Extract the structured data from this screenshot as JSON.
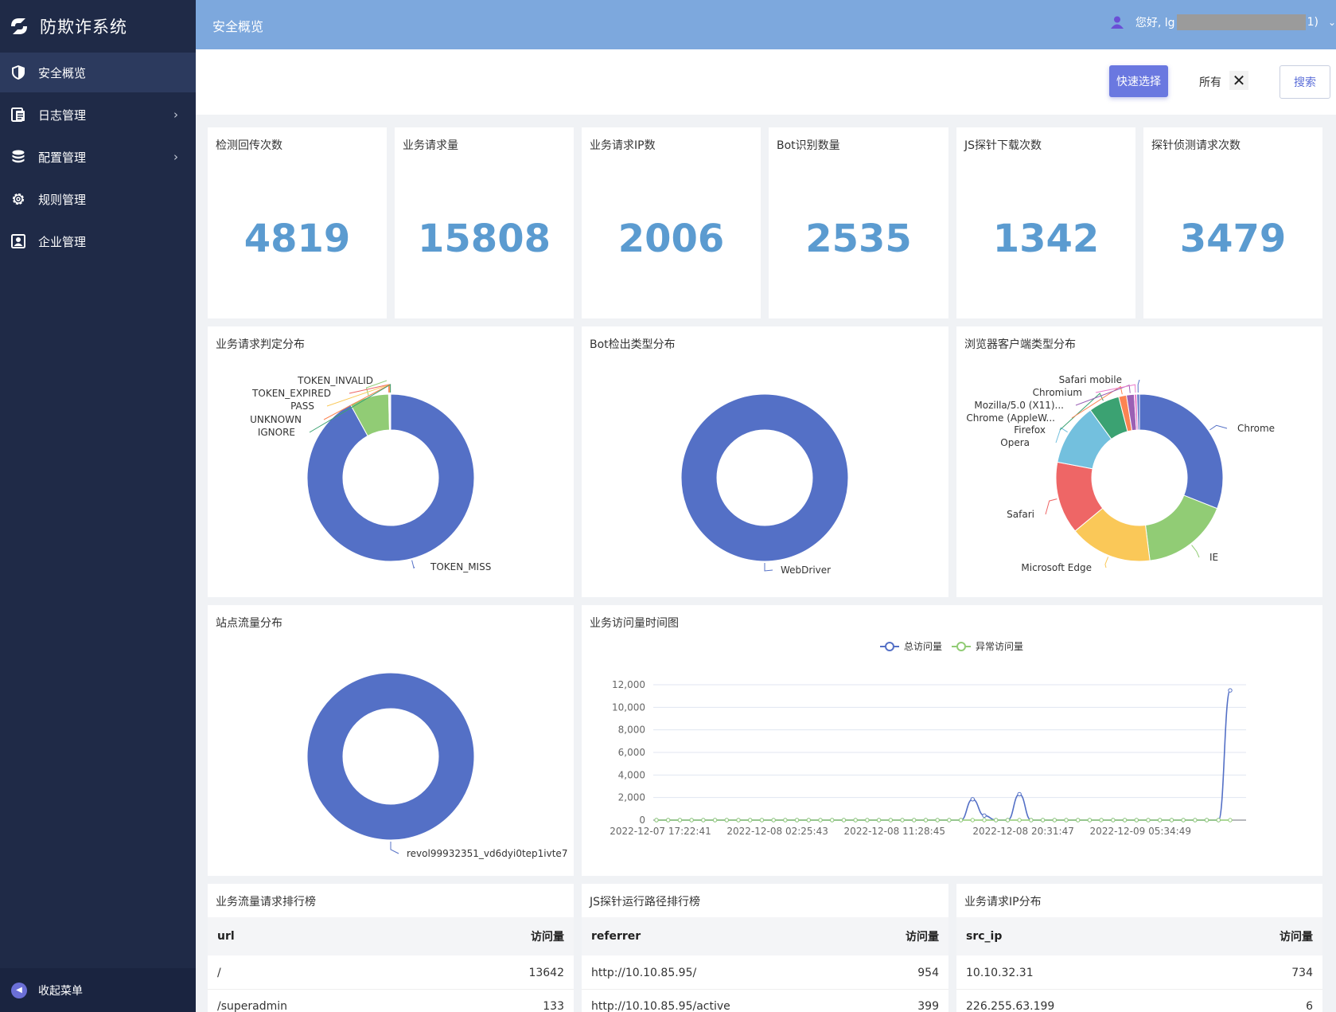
{
  "app": {
    "title": "防欺诈系统"
  },
  "sidebar": {
    "items": [
      {
        "label": "安全概览",
        "icon": "shield-icon",
        "active": true,
        "has_children": false
      },
      {
        "label": "日志管理",
        "icon": "log-icon",
        "active": false,
        "has_children": true
      },
      {
        "label": "配置管理",
        "icon": "database-icon",
        "active": false,
        "has_children": true
      },
      {
        "label": "规则管理",
        "icon": "gear-icon",
        "active": false,
        "has_children": false
      },
      {
        "label": "企业管理",
        "icon": "user-card-icon",
        "active": false,
        "has_children": false
      }
    ],
    "collapse_label": "收起菜单"
  },
  "header": {
    "title": "安全概览",
    "greeting_prefix": "您好, lg",
    "greeting_suffix": "1)"
  },
  "toolbar": {
    "quick_select": "快速选择",
    "filter_tag": "所有",
    "search": "搜索"
  },
  "stats": [
    {
      "label": "检测回传次数",
      "value": "4819"
    },
    {
      "label": "业务请求量",
      "value": "15808"
    },
    {
      "label": "业务请求IP数",
      "value": "2006"
    },
    {
      "label": "Bot识别数量",
      "value": "2535"
    },
    {
      "label": "JS探针下载次数",
      "value": "1342"
    },
    {
      "label": "探针侦测请求次数",
      "value": "3479"
    }
  ],
  "colors": {
    "accent": "#5470c6",
    "green": "#91cc75",
    "stat_value": "#5b9bd0",
    "header": "#7da8dd",
    "sidebar": "#1f2a47"
  },
  "chart_data": [
    {
      "type": "pie",
      "title": "业务请求判定分布",
      "slices": [
        {
          "name": "TOKEN_MISS",
          "value": 92,
          "color": "#5470c6"
        },
        {
          "name": "TOKEN_INVALID",
          "value": 7.6,
          "color": "#91cc75"
        },
        {
          "name": "TOKEN_EXPIRED",
          "value": 0.1,
          "color": "#ee6666"
        },
        {
          "name": "PASS",
          "value": 0.1,
          "color": "#fac858"
        },
        {
          "name": "UNKNOWN",
          "value": 0.1,
          "color": "#fc8452"
        },
        {
          "name": "IGNORE",
          "value": 0.1,
          "color": "#3ba272"
        }
      ]
    },
    {
      "type": "pie",
      "title": "Bot检出类型分布",
      "slices": [
        {
          "name": "WebDriver",
          "value": 100,
          "color": "#5470c6"
        }
      ]
    },
    {
      "type": "pie",
      "title": "浏览器客户端类型分布",
      "slices": [
        {
          "name": "Chrome",
          "value": 31,
          "color": "#5470c6"
        },
        {
          "name": "IE",
          "value": 17,
          "color": "#91cc75"
        },
        {
          "name": "Microsoft Edge",
          "value": 16,
          "color": "#fac858"
        },
        {
          "name": "Safari",
          "value": 14,
          "color": "#ee6666"
        },
        {
          "name": "Opera",
          "value": 12,
          "color": "#73c0de"
        },
        {
          "name": "Firefox",
          "value": 6,
          "color": "#3ba272"
        },
        {
          "name": "Chrome (AppleW...",
          "value": 1.5,
          "color": "#fc8452"
        },
        {
          "name": "Mozilla/5.0 (X11)...",
          "value": 1.5,
          "color": "#9a60b4"
        },
        {
          "name": "Chromium",
          "value": 0.5,
          "color": "#ea7ccc"
        },
        {
          "name": "Safari mobile",
          "value": 0.5,
          "color": "#5470c6"
        }
      ]
    },
    {
      "type": "pie",
      "title": "站点流量分布",
      "slices": [
        {
          "name": "revol99932351_vd6dyi0tep1ivte7",
          "value": 100,
          "color": "#5470c6"
        }
      ]
    },
    {
      "type": "line",
      "title": "业务访问量时间图",
      "ylim": [
        0,
        12000
      ],
      "yticks": [
        "0",
        "2,000",
        "4,000",
        "6,000",
        "8,000",
        "10,000",
        "12,000"
      ],
      "xticks": [
        "2022-12-07 17:22:41",
        "2022-12-08 02:25:43",
        "2022-12-08 11:28:45",
        "2022-12-08 20:31:47",
        "2022-12-09 05:34:49"
      ],
      "series": [
        {
          "name": "总访问量",
          "color": "#5470c6",
          "values": [
            0,
            0,
            0,
            0,
            0,
            0,
            0,
            0,
            0,
            0,
            0,
            0,
            0,
            0,
            0,
            0,
            0,
            0,
            0,
            0,
            0,
            0,
            0,
            0,
            0,
            0,
            0,
            1850,
            400,
            0,
            0,
            2300,
            0,
            0,
            0,
            0,
            0,
            0,
            0,
            0,
            0,
            0,
            0,
            0,
            0,
            0,
            0,
            0,
            0,
            11500
          ]
        },
        {
          "name": "异常访问量",
          "color": "#91cc75",
          "values": [
            0,
            0,
            0,
            0,
            0,
            0,
            0,
            0,
            0,
            0,
            0,
            0,
            0,
            0,
            0,
            0,
            0,
            0,
            0,
            0,
            0,
            0,
            0,
            0,
            0,
            0,
            0,
            0,
            0,
            0,
            0,
            0,
            0,
            0,
            0,
            0,
            0,
            0,
            0,
            0,
            0,
            0,
            0,
            0,
            0,
            0,
            0,
            0,
            0,
            0
          ]
        }
      ]
    }
  ],
  "tables": [
    {
      "title": "业务流量请求排行榜",
      "col1": "url",
      "col2": "访问量",
      "rows": [
        {
          "k": "/",
          "v": "13642"
        },
        {
          "k": "/superadmin",
          "v": "133"
        }
      ]
    },
    {
      "title": "JS探针运行路径排行榜",
      "col1": "referrer",
      "col2": "访问量",
      "rows": [
        {
          "k": "http://10.10.85.95/",
          "v": "954"
        },
        {
          "k": "http://10.10.85.95/active",
          "v": "399"
        }
      ]
    },
    {
      "title": "业务请求IP分布",
      "col1": "src_ip",
      "col2": "访问量",
      "rows": [
        {
          "k": "10.10.32.31",
          "v": "734"
        },
        {
          "k": "226.255.63.199",
          "v": "6"
        }
      ]
    }
  ]
}
